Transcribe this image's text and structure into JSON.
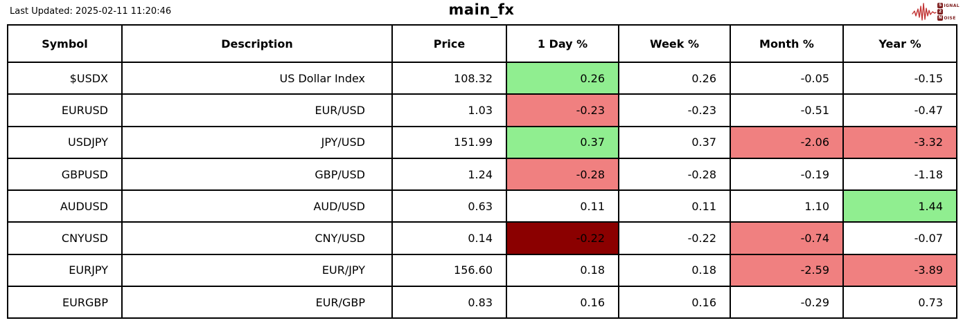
{
  "page": {
    "last_updated": "Last Updated: 2025-02-11 11:20:46",
    "title": "main_fx"
  },
  "logo": {
    "waveform_color": "#c23434",
    "box_color": "#7e1f1f",
    "text_color": "#7e1f1f",
    "lines": [
      {
        "boxed": "S",
        "rest": "IGNAL"
      },
      {
        "boxed": "2",
        "rest": ""
      },
      {
        "boxed": "N",
        "rest": "OISE"
      }
    ]
  },
  "colors": {
    "positive": "#90EE90",
    "negative": "#F08080",
    "strong_negative": "#8B0000"
  },
  "table": {
    "columns": [
      "Symbol",
      "Description",
      "Price",
      "1 Day %",
      "Week %",
      "Month %",
      "Year %"
    ],
    "column_keys": [
      "symbol",
      "description",
      "price",
      "day-pct",
      "week-pct",
      "month-pct",
      "year-pct"
    ],
    "rows": [
      {
        "cells": [
          {
            "v": "$USDX"
          },
          {
            "v": "US Dollar Index"
          },
          {
            "v": "108.32"
          },
          {
            "v": "0.26",
            "bg": "positive"
          },
          {
            "v": "0.26"
          },
          {
            "v": "-0.05"
          },
          {
            "v": "-0.15"
          }
        ]
      },
      {
        "cells": [
          {
            "v": "EURUSD"
          },
          {
            "v": "EUR/USD"
          },
          {
            "v": "1.03"
          },
          {
            "v": "-0.23",
            "bg": "negative"
          },
          {
            "v": "-0.23"
          },
          {
            "v": "-0.51"
          },
          {
            "v": "-0.47"
          }
        ]
      },
      {
        "cells": [
          {
            "v": "USDJPY"
          },
          {
            "v": "JPY/USD"
          },
          {
            "v": "151.99"
          },
          {
            "v": "0.37",
            "bg": "positive"
          },
          {
            "v": "0.37"
          },
          {
            "v": "-2.06",
            "bg": "negative"
          },
          {
            "v": "-3.32",
            "bg": "negative"
          }
        ]
      },
      {
        "cells": [
          {
            "v": "GBPUSD"
          },
          {
            "v": "GBP/USD"
          },
          {
            "v": "1.24"
          },
          {
            "v": "-0.28",
            "bg": "negative"
          },
          {
            "v": "-0.28"
          },
          {
            "v": "-0.19"
          },
          {
            "v": "-1.18"
          }
        ]
      },
      {
        "cells": [
          {
            "v": "AUDUSD"
          },
          {
            "v": "AUD/USD"
          },
          {
            "v": "0.63"
          },
          {
            "v": "0.11"
          },
          {
            "v": "0.11"
          },
          {
            "v": "1.10"
          },
          {
            "v": "1.44",
            "bg": "positive"
          }
        ]
      },
      {
        "cells": [
          {
            "v": "CNYUSD"
          },
          {
            "v": "CNY/USD"
          },
          {
            "v": "0.14"
          },
          {
            "v": "-0.22",
            "bg": "strong_negative"
          },
          {
            "v": "-0.22"
          },
          {
            "v": "-0.74",
            "bg": "negative"
          },
          {
            "v": "-0.07"
          }
        ]
      },
      {
        "cells": [
          {
            "v": "EURJPY"
          },
          {
            "v": "EUR/JPY"
          },
          {
            "v": "156.60"
          },
          {
            "v": "0.18"
          },
          {
            "v": "0.18"
          },
          {
            "v": "-2.59",
            "bg": "negative"
          },
          {
            "v": "-3.89",
            "bg": "negative"
          }
        ]
      },
      {
        "cells": [
          {
            "v": "EURGBP"
          },
          {
            "v": "EUR/GBP"
          },
          {
            "v": "0.83"
          },
          {
            "v": "0.16"
          },
          {
            "v": "0.16"
          },
          {
            "v": "-0.29"
          },
          {
            "v": "0.73"
          }
        ]
      }
    ]
  },
  "chart_data": {
    "type": "table",
    "title": "main_fx",
    "columns": [
      "Symbol",
      "Description",
      "Price",
      "1 Day %",
      "Week %",
      "Month %",
      "Year %"
    ],
    "rows": [
      [
        "$USDX",
        "US Dollar Index",
        108.32,
        0.26,
        0.26,
        -0.05,
        -0.15
      ],
      [
        "EURUSD",
        "EUR/USD",
        1.03,
        -0.23,
        -0.23,
        -0.51,
        -0.47
      ],
      [
        "USDJPY",
        "JPY/USD",
        151.99,
        0.37,
        0.37,
        -2.06,
        -3.32
      ],
      [
        "GBPUSD",
        "GBP/USD",
        1.24,
        -0.28,
        -0.28,
        -0.19,
        -1.18
      ],
      [
        "AUDUSD",
        "AUD/USD",
        0.63,
        0.11,
        0.11,
        1.1,
        1.44
      ],
      [
        "CNYUSD",
        "CNY/USD",
        0.14,
        -0.22,
        -0.22,
        -0.74,
        -0.07
      ],
      [
        "EURJPY",
        "EUR/JPY",
        156.6,
        0.18,
        0.18,
        -2.59,
        -3.89
      ],
      [
        "EURGBP",
        "EUR/GBP",
        0.83,
        0.16,
        0.16,
        -0.29,
        0.73
      ]
    ],
    "highlight_rules": "green=positive move, light red=negative move, dark red=strong negative outlier"
  }
}
